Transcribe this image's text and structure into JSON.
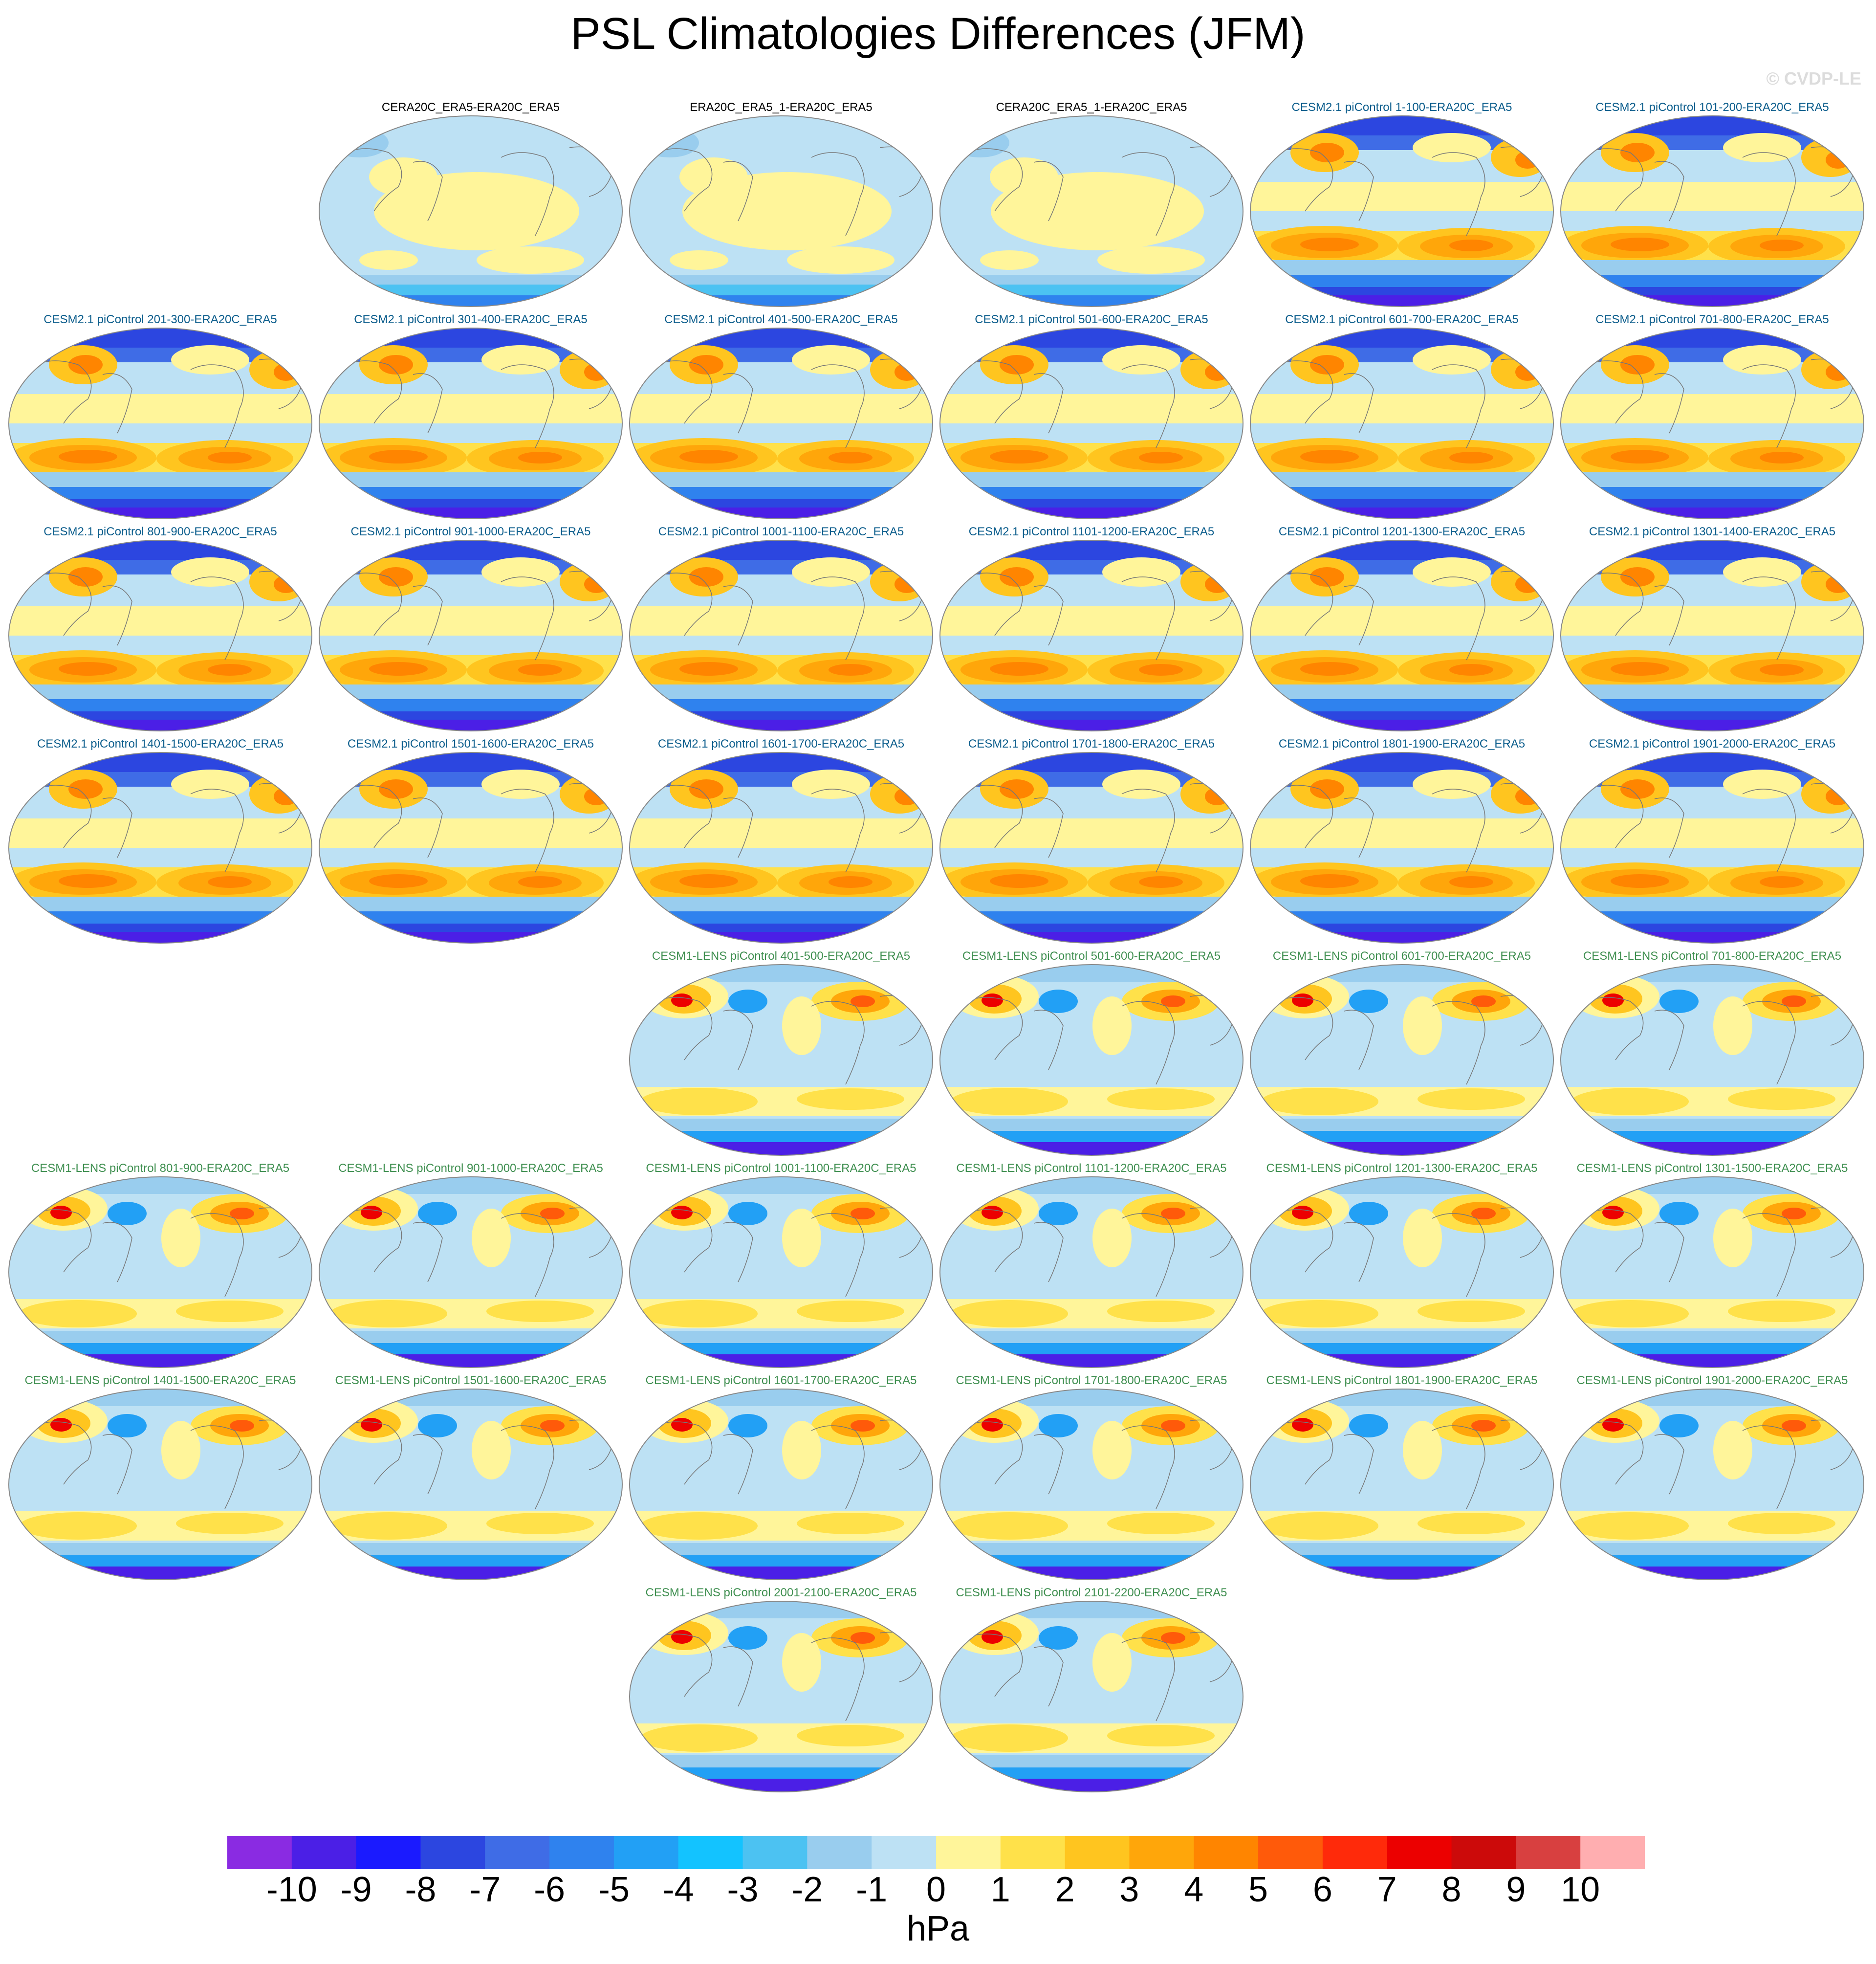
{
  "title": "PSL Climatologies Differences (JFM)",
  "watermark": "© CVDP-LE",
  "colors": {
    "title_black": "#000000",
    "title_cesm2": "#0b5d8c",
    "title_cesm1": "#3f8f50"
  },
  "panel_groups": [
    {
      "id": "observations",
      "title_color": "#000000",
      "style": "obs",
      "titles": [
        "CERA20C_ERA5-ERA20C_ERA5",
        "ERA20C_ERA5_1-ERA20C_ERA5",
        "CERA20C_ERA5_1-ERA20C_ERA5"
      ]
    },
    {
      "id": "cesm2-picontrol",
      "title_color": "#0b5d8c",
      "style": "cesm2",
      "titles": [
        "CESM2.1 piControl 1-100-ERA20C_ERA5",
        "CESM2.1 piControl 101-200-ERA20C_ERA5",
        "CESM2.1 piControl 201-300-ERA20C_ERA5",
        "CESM2.1 piControl 301-400-ERA20C_ERA5",
        "CESM2.1 piControl 401-500-ERA20C_ERA5",
        "CESM2.1 piControl 501-600-ERA20C_ERA5",
        "CESM2.1 piControl 601-700-ERA20C_ERA5",
        "CESM2.1 piControl 701-800-ERA20C_ERA5",
        "CESM2.1 piControl 801-900-ERA20C_ERA5",
        "CESM2.1 piControl 901-1000-ERA20C_ERA5",
        "CESM2.1 piControl 1001-1100-ERA20C_ERA5",
        "CESM2.1 piControl 1101-1200-ERA20C_ERA5",
        "CESM2.1 piControl 1201-1300-ERA20C_ERA5",
        "CESM2.1 piControl 1301-1400-ERA20C_ERA5",
        "CESM2.1 piControl 1401-1500-ERA20C_ERA5",
        "CESM2.1 piControl 1501-1600-ERA20C_ERA5",
        "CESM2.1 piControl 1601-1700-ERA20C_ERA5",
        "CESM2.1 piControl 1701-1800-ERA20C_ERA5",
        "CESM2.1 piControl 1801-1900-ERA20C_ERA5",
        "CESM2.1 piControl 1901-2000-ERA20C_ERA5"
      ]
    },
    {
      "id": "cesm1-lens-picontrol",
      "title_color": "#3f8f50",
      "style": "cesm1",
      "titles": [
        "CESM1-LENS piControl 401-500-ERA20C_ERA5",
        "CESM1-LENS piControl 501-600-ERA20C_ERA5",
        "CESM1-LENS piControl 601-700-ERA20C_ERA5",
        "CESM1-LENS piControl 701-800-ERA20C_ERA5",
        "CESM1-LENS piControl 801-900-ERA20C_ERA5",
        "CESM1-LENS piControl 901-1000-ERA20C_ERA5",
        "CESM1-LENS piControl 1001-1100-ERA20C_ERA5",
        "CESM1-LENS piControl 1101-1200-ERA20C_ERA5",
        "CESM1-LENS piControl 1201-1300-ERA20C_ERA5",
        "CESM1-LENS piControl 1301-1500-ERA20C_ERA5",
        "CESM1-LENS piControl 1401-1500-ERA20C_ERA5",
        "CESM1-LENS piControl 1501-1600-ERA20C_ERA5",
        "CESM1-LENS piControl 1601-1700-ERA20C_ERA5",
        "CESM1-LENS piControl 1701-1800-ERA20C_ERA5",
        "CESM1-LENS piControl 1801-1900-ERA20C_ERA5",
        "CESM1-LENS piControl 1901-2000-ERA20C_ERA5",
        "CESM1-LENS piControl 2001-2100-ERA20C_ERA5",
        "CESM1-LENS piControl 2101-2200-ERA20C_ERA5"
      ]
    }
  ],
  "colorbar": {
    "unit": "hPa",
    "tick_labels": [
      "-10",
      "-9",
      "-8",
      "-7",
      "-6",
      "-5",
      "-4",
      "-3",
      "-2",
      "-1",
      "0",
      "1",
      "2",
      "3",
      "4",
      "5",
      "6",
      "7",
      "8",
      "9",
      "10"
    ],
    "colors": [
      "#8a2be2",
      "#4b1fe6",
      "#1a1aff",
      "#2c46e0",
      "#3f6ce6",
      "#2f82ee",
      "#22a0f5",
      "#13c3ff",
      "#4cc2f2",
      "#99cdee",
      "#bde1f4",
      "#fff59a",
      "#ffe14a",
      "#ffc51f",
      "#ffa60a",
      "#ff8500",
      "#ff5a0a",
      "#ff2a0a",
      "#ec0000",
      "#cc0a0a",
      "#d84040",
      "#ffaeb0"
    ]
  }
}
